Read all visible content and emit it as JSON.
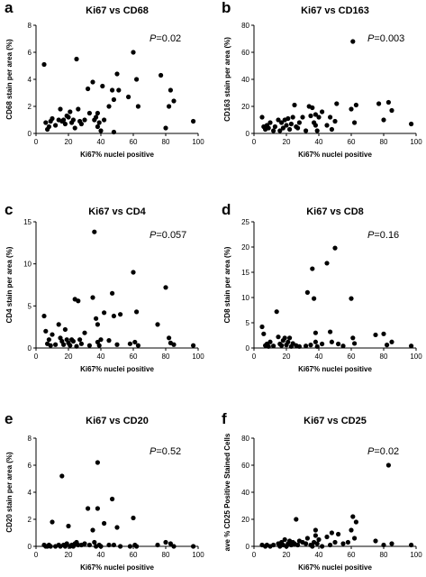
{
  "chart_data": [
    {
      "letter": "a",
      "type": "scatter",
      "title": "Ki67 vs CD68",
      "xlabel": "Ki67% nuclei positive",
      "ylabel": "CD68 stain per area (%)",
      "p_prefix": "P",
      "p_value": "=0.02",
      "xlim": [
        0,
        100
      ],
      "ylim": [
        0,
        8
      ],
      "xticks": [
        0,
        20,
        40,
        60,
        80,
        100
      ],
      "yticks": [
        0,
        2,
        4,
        6,
        8
      ],
      "points": [
        [
          5,
          5.1
        ],
        [
          6,
          0.8
        ],
        [
          7,
          0.3
        ],
        [
          8,
          0.5
        ],
        [
          9,
          0.9
        ],
        [
          10,
          1.1
        ],
        [
          12,
          0.6
        ],
        [
          14,
          1.0
        ],
        [
          15,
          1.8
        ],
        [
          16,
          0.9
        ],
        [
          17,
          1.0
        ],
        [
          18,
          0.7
        ],
        [
          19,
          1.3
        ],
        [
          20,
          1.2
        ],
        [
          21,
          1.6
        ],
        [
          22,
          0.8
        ],
        [
          23,
          1.0
        ],
        [
          24,
          0.4
        ],
        [
          25,
          5.5
        ],
        [
          26,
          1.8
        ],
        [
          27,
          0.9
        ],
        [
          28,
          0.7
        ],
        [
          30,
          1.0
        ],
        [
          32,
          3.3
        ],
        [
          33,
          1.5
        ],
        [
          35,
          3.8
        ],
        [
          36,
          1.0
        ],
        [
          37,
          1.2
        ],
        [
          38,
          1.5
        ],
        [
          38,
          0.5
        ],
        [
          39,
          0.8
        ],
        [
          40,
          0.2
        ],
        [
          41,
          3.5
        ],
        [
          42,
          1.0
        ],
        [
          45,
          2.0
        ],
        [
          47,
          3.2
        ],
        [
          48,
          0.1
        ],
        [
          48,
          2.5
        ],
        [
          50,
          4.4
        ],
        [
          51,
          3.2
        ],
        [
          57,
          2.7
        ],
        [
          60,
          6.0
        ],
        [
          62,
          4.0
        ],
        [
          63,
          2.0
        ],
        [
          77,
          4.3
        ],
        [
          80,
          0.4
        ],
        [
          82,
          2.0
        ],
        [
          83,
          3.2
        ],
        [
          85,
          2.4
        ],
        [
          97,
          0.9
        ]
      ]
    },
    {
      "letter": "b",
      "type": "scatter",
      "title": "Ki67 vs CD163",
      "xlabel": "Ki67% nuclei positive",
      "ylabel": "CD163 stain per area (%)",
      "p_prefix": "P",
      "p_value": "=0.003",
      "xlim": [
        0,
        100
      ],
      "ylim": [
        0,
        80
      ],
      "xticks": [
        0,
        20,
        40,
        60,
        80,
        100
      ],
      "yticks": [
        0,
        20,
        40,
        60,
        80
      ],
      "points": [
        [
          5,
          12
        ],
        [
          6,
          5
        ],
        [
          7,
          3
        ],
        [
          8,
          6
        ],
        [
          9,
          4
        ],
        [
          10,
          8
        ],
        [
          12,
          2
        ],
        [
          13,
          5
        ],
        [
          15,
          10
        ],
        [
          16,
          2
        ],
        [
          17,
          8
        ],
        [
          18,
          4
        ],
        [
          19,
          10
        ],
        [
          20,
          6
        ],
        [
          21,
          11
        ],
        [
          22,
          3
        ],
        [
          23,
          7
        ],
        [
          24,
          12
        ],
        [
          25,
          21
        ],
        [
          26,
          5
        ],
        [
          27,
          4
        ],
        [
          28,
          8
        ],
        [
          30,
          12
        ],
        [
          32,
          2
        ],
        [
          34,
          20
        ],
        [
          35,
          13
        ],
        [
          36,
          19
        ],
        [
          37,
          8
        ],
        [
          38,
          14
        ],
        [
          38,
          6
        ],
        [
          39,
          2
        ],
        [
          40,
          12
        ],
        [
          42,
          16
        ],
        [
          45,
          6
        ],
        [
          47,
          12
        ],
        [
          48,
          3
        ],
        [
          50,
          9
        ],
        [
          51,
          22
        ],
        [
          60,
          18
        ],
        [
          61,
          68
        ],
        [
          62,
          8
        ],
        [
          63,
          21
        ],
        [
          77,
          22
        ],
        [
          80,
          10
        ],
        [
          83,
          23
        ],
        [
          85,
          17
        ],
        [
          97,
          7
        ]
      ]
    },
    {
      "letter": "c",
      "type": "scatter",
      "title": "Ki67 vs CD4",
      "xlabel": "Ki67% nuclei positive",
      "ylabel": "CD4 stain per area (%)",
      "p_prefix": "P",
      "p_value": "=0.057",
      "xlim": [
        0,
        100
      ],
      "ylim": [
        0,
        15
      ],
      "xticks": [
        0,
        20,
        40,
        60,
        80,
        100
      ],
      "yticks": [
        0,
        5,
        10,
        15
      ],
      "points": [
        [
          5,
          3.8
        ],
        [
          6,
          2.0
        ],
        [
          7,
          0.5
        ],
        [
          8,
          1.0
        ],
        [
          9,
          0.3
        ],
        [
          10,
          1.6
        ],
        [
          12,
          0.4
        ],
        [
          14,
          2.8
        ],
        [
          15,
          1.2
        ],
        [
          16,
          0.8
        ],
        [
          17,
          0.4
        ],
        [
          18,
          2.2
        ],
        [
          19,
          1.0
        ],
        [
          20,
          0.6
        ],
        [
          21,
          0.3
        ],
        [
          22,
          1.0
        ],
        [
          23,
          0.8
        ],
        [
          24,
          5.8
        ],
        [
          25,
          0.2
        ],
        [
          26,
          5.6
        ],
        [
          27,
          1.0
        ],
        [
          28,
          0.5
        ],
        [
          30,
          1.8
        ],
        [
          33,
          0.3
        ],
        [
          35,
          6.0
        ],
        [
          36,
          13.8
        ],
        [
          37,
          3.5
        ],
        [
          38,
          0.7
        ],
        [
          38,
          2.8
        ],
        [
          39,
          0.3
        ],
        [
          40,
          1.0
        ],
        [
          42,
          4.2
        ],
        [
          45,
          0.9
        ],
        [
          47,
          6.5
        ],
        [
          48,
          3.8
        ],
        [
          50,
          0.4
        ],
        [
          52,
          4.0
        ],
        [
          58,
          0.5
        ],
        [
          60,
          9.0
        ],
        [
          61,
          0.7
        ],
        [
          62,
          4.3
        ],
        [
          63,
          0.3
        ],
        [
          75,
          2.8
        ],
        [
          80,
          7.2
        ],
        [
          82,
          1.2
        ],
        [
          83,
          0.6
        ],
        [
          85,
          0.4
        ],
        [
          97,
          0.3
        ]
      ]
    },
    {
      "letter": "d",
      "type": "scatter",
      "title": "Ki67 vs CD8",
      "xlabel": "Ki67% nuclei positive",
      "ylabel": "CD8 stain per area (%)",
      "p_prefix": "P",
      "p_value": "=0.16",
      "xlim": [
        0,
        100
      ],
      "ylim": [
        0,
        25
      ],
      "xticks": [
        0,
        20,
        40,
        60,
        80,
        100
      ],
      "yticks": [
        0,
        5,
        10,
        15,
        20,
        25
      ],
      "points": [
        [
          5,
          4.2
        ],
        [
          6,
          2.8
        ],
        [
          7,
          0.5
        ],
        [
          8,
          0.8
        ],
        [
          9,
          0.3
        ],
        [
          10,
          1.2
        ],
        [
          12,
          0.4
        ],
        [
          14,
          7.2
        ],
        [
          15,
          2.2
        ],
        [
          16,
          0.8
        ],
        [
          17,
          0.5
        ],
        [
          18,
          1.5
        ],
        [
          19,
          2.0
        ],
        [
          20,
          0.6
        ],
        [
          21,
          1.2
        ],
        [
          22,
          2.0
        ],
        [
          23,
          0.3
        ],
        [
          24,
          0.9
        ],
        [
          26,
          0.5
        ],
        [
          28,
          0.3
        ],
        [
          32,
          0.4
        ],
        [
          33,
          11.0
        ],
        [
          35,
          0.6
        ],
        [
          36,
          15.7
        ],
        [
          37,
          9.8
        ],
        [
          38,
          3.0
        ],
        [
          38,
          1.2
        ],
        [
          39,
          0.3
        ],
        [
          42,
          0.8
        ],
        [
          45,
          16.8
        ],
        [
          47,
          3.2
        ],
        [
          48,
          1.2
        ],
        [
          50,
          19.8
        ],
        [
          52,
          0.8
        ],
        [
          55,
          0.4
        ],
        [
          60,
          9.8
        ],
        [
          61,
          2.0
        ],
        [
          62,
          0.9
        ],
        [
          75,
          2.6
        ],
        [
          80,
          2.8
        ],
        [
          82,
          0.6
        ],
        [
          85,
          1.2
        ],
        [
          97,
          0.4
        ]
      ]
    },
    {
      "letter": "e",
      "type": "scatter",
      "title": "Ki67 vs CD20",
      "xlabel": "Ki67% nuclei positive",
      "ylabel": "CD20 stain per area (%)",
      "p_prefix": "P",
      "p_value": "=0.52",
      "xlim": [
        0,
        100
      ],
      "ylim": [
        0,
        8
      ],
      "xticks": [
        0,
        20,
        40,
        60,
        80,
        100
      ],
      "yticks": [
        0,
        2,
        4,
        6,
        8
      ],
      "points": [
        [
          5,
          0.1
        ],
        [
          6,
          0.0
        ],
        [
          7,
          0.0
        ],
        [
          8,
          0.1
        ],
        [
          9,
          0.0
        ],
        [
          10,
          1.8
        ],
        [
          12,
          0.0
        ],
        [
          14,
          0.1
        ],
        [
          15,
          0.0
        ],
        [
          16,
          5.2
        ],
        [
          17,
          0.1
        ],
        [
          18,
          0.0
        ],
        [
          19,
          0.2
        ],
        [
          20,
          1.5
        ],
        [
          21,
          0.0
        ],
        [
          22,
          0.1
        ],
        [
          23,
          0.0
        ],
        [
          24,
          0.2
        ],
        [
          25,
          0.3
        ],
        [
          26,
          0.1
        ],
        [
          28,
          0.1
        ],
        [
          30,
          0.2
        ],
        [
          32,
          2.8
        ],
        [
          33,
          0.1
        ],
        [
          35,
          1.2
        ],
        [
          36,
          0.3
        ],
        [
          37,
          0.0
        ],
        [
          38,
          2.8
        ],
        [
          38,
          6.2
        ],
        [
          39,
          0.1
        ],
        [
          40,
          0.0
        ],
        [
          42,
          1.7
        ],
        [
          45,
          0.1
        ],
        [
          47,
          3.5
        ],
        [
          48,
          0.1
        ],
        [
          50,
          1.4
        ],
        [
          52,
          0.0
        ],
        [
          58,
          0.0
        ],
        [
          60,
          2.1
        ],
        [
          61,
          0.1
        ],
        [
          62,
          0.0
        ],
        [
          75,
          0.1
        ],
        [
          80,
          0.3
        ],
        [
          83,
          0.2
        ],
        [
          85,
          0.0
        ],
        [
          97,
          0.0
        ]
      ]
    },
    {
      "letter": "f",
      "type": "scatter",
      "title": "Ki67 vs CD25",
      "xlabel": "Ki67% nuclei positive",
      "ylabel": "ave % CD25 Positive Stained Cells",
      "p_prefix": "P",
      "p_value": "=0.02",
      "xlim": [
        0,
        100
      ],
      "ylim": [
        0,
        80
      ],
      "xticks": [
        0,
        20,
        40,
        60,
        80,
        100
      ],
      "yticks": [
        0,
        20,
        40,
        60,
        80
      ],
      "points": [
        [
          5,
          1
        ],
        [
          7,
          0
        ],
        [
          8,
          1
        ],
        [
          10,
          0
        ],
        [
          12,
          1
        ],
        [
          15,
          2
        ],
        [
          16,
          0
        ],
        [
          17,
          3
        ],
        [
          18,
          1
        ],
        [
          19,
          5
        ],
        [
          20,
          0
        ],
        [
          21,
          2
        ],
        [
          22,
          4
        ],
        [
          23,
          1
        ],
        [
          24,
          3
        ],
        [
          25,
          2
        ],
        [
          26,
          20
        ],
        [
          27,
          1
        ],
        [
          28,
          4
        ],
        [
          30,
          3
        ],
        [
          32,
          2
        ],
        [
          33,
          6
        ],
        [
          35,
          1
        ],
        [
          36,
          0
        ],
        [
          37,
          3
        ],
        [
          38,
          8
        ],
        [
          38,
          12
        ],
        [
          39,
          2
        ],
        [
          40,
          5
        ],
        [
          42,
          0
        ],
        [
          45,
          7
        ],
        [
          47,
          1
        ],
        [
          48,
          10
        ],
        [
          50,
          3
        ],
        [
          52,
          9
        ],
        [
          55,
          2
        ],
        [
          58,
          3
        ],
        [
          60,
          12
        ],
        [
          61,
          22
        ],
        [
          62,
          6
        ],
        [
          63,
          18
        ],
        [
          75,
          4
        ],
        [
          80,
          1
        ],
        [
          83,
          60
        ],
        [
          85,
          2
        ],
        [
          97,
          1
        ]
      ]
    }
  ]
}
